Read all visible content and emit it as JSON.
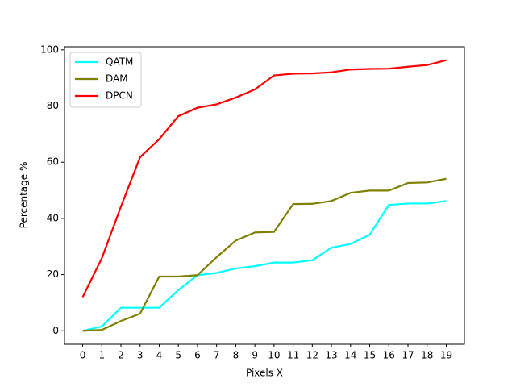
{
  "chart_data": {
    "type": "line",
    "xlabel": "Pixels X",
    "ylabel": "Percentage %",
    "x": [
      0,
      1,
      2,
      3,
      4,
      5,
      6,
      7,
      8,
      9,
      10,
      11,
      12,
      13,
      14,
      15,
      16,
      17,
      18,
      19
    ],
    "series": [
      {
        "name": "QATM",
        "color": "#00ffff",
        "values": [
          0,
          1.5,
          8.2,
          8.2,
          8.2,
          14.5,
          19.8,
          20.6,
          22.2,
          23,
          24.3,
          24.3,
          25.1,
          29.6,
          30.9,
          34.2,
          44.8,
          45.3,
          45.3,
          46.2
        ]
      },
      {
        "name": "DAM",
        "color": "#808000",
        "values": [
          0,
          0.3,
          3.5,
          6.1,
          19.3,
          19.3,
          19.8,
          26.2,
          32.1,
          35,
          35.2,
          45.1,
          45.2,
          46.2,
          49.1,
          49.9,
          49.9,
          52.6,
          52.8,
          54.1
        ]
      },
      {
        "name": "DPCN",
        "color": "#ff0000",
        "values": [
          12,
          25.8,
          44.2,
          61.8,
          68.2,
          76.4,
          79.4,
          80.6,
          83,
          85.9,
          90.9,
          91.5,
          91.6,
          92,
          93,
          93.2,
          93.3,
          94,
          94.6,
          96.3
        ]
      }
    ],
    "xlim": [
      -0.95,
      19.95
    ],
    "xticks": [
      0,
      1,
      2,
      3,
      4,
      5,
      6,
      7,
      8,
      9,
      10,
      11,
      12,
      13,
      14,
      15,
      16,
      17,
      18,
      19
    ],
    "ylim": [
      -4.8,
      101.1
    ],
    "yticks": [
      0,
      20,
      40,
      60,
      80,
      100
    ],
    "legend": "upper left",
    "grid": false
  }
}
